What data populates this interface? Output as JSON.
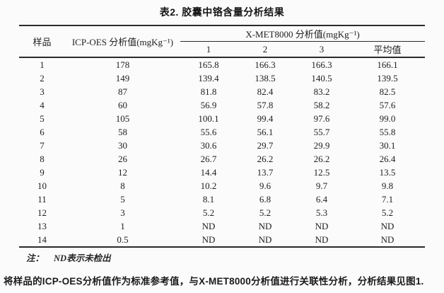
{
  "title": "表2. 胶囊中铬含量分析结果",
  "table": {
    "col_sample": "样品",
    "col_icp": "ICP-OES 分析值(mgKg⁻¹)",
    "col_xmet_group": "X-MET8000 分析值(mgKg⁻¹)",
    "subcols": [
      "1",
      "2",
      "3",
      "平均值"
    ],
    "rows": [
      [
        "1",
        "178",
        "165.8",
        "166.3",
        "166.3",
        "166.1"
      ],
      [
        "2",
        "149",
        "139.4",
        "138.5",
        "140.5",
        "139.5"
      ],
      [
        "3",
        "87",
        "81.8",
        "82.4",
        "83.2",
        "82.5"
      ],
      [
        "4",
        "60",
        "56.9",
        "57.8",
        "58.2",
        "57.6"
      ],
      [
        "5",
        "105",
        "100.1",
        "99.4",
        "97.6",
        "99.0"
      ],
      [
        "6",
        "58",
        "55.6",
        "56.1",
        "55.7",
        "55.8"
      ],
      [
        "7",
        "30",
        "30.6",
        "29.7",
        "29.9",
        "30.1"
      ],
      [
        "8",
        "26",
        "26.7",
        "26.2",
        "26.2",
        "26.4"
      ],
      [
        "9",
        "12",
        "14.4",
        "13.7",
        "12.5",
        "13.5"
      ],
      [
        "10",
        "8",
        "10.2",
        "9.6",
        "9.7",
        "9.8"
      ],
      [
        "11",
        "5",
        "8.1",
        "6.8",
        "6.4",
        "7.1"
      ],
      [
        "12",
        "3",
        "5.2",
        "5.2",
        "5.3",
        "5.2"
      ],
      [
        "13",
        "1",
        "ND",
        "ND",
        "ND",
        "ND"
      ],
      [
        "14",
        "0.5",
        "ND",
        "ND",
        "ND",
        "ND"
      ]
    ]
  },
  "note": {
    "label": "注：",
    "text": "ND表示未检出"
  },
  "paragraph": "将样品的ICP-OES分析值作为标准参考值，与X-MET8000分析值进行关联性分析，分析结果见图1."
}
